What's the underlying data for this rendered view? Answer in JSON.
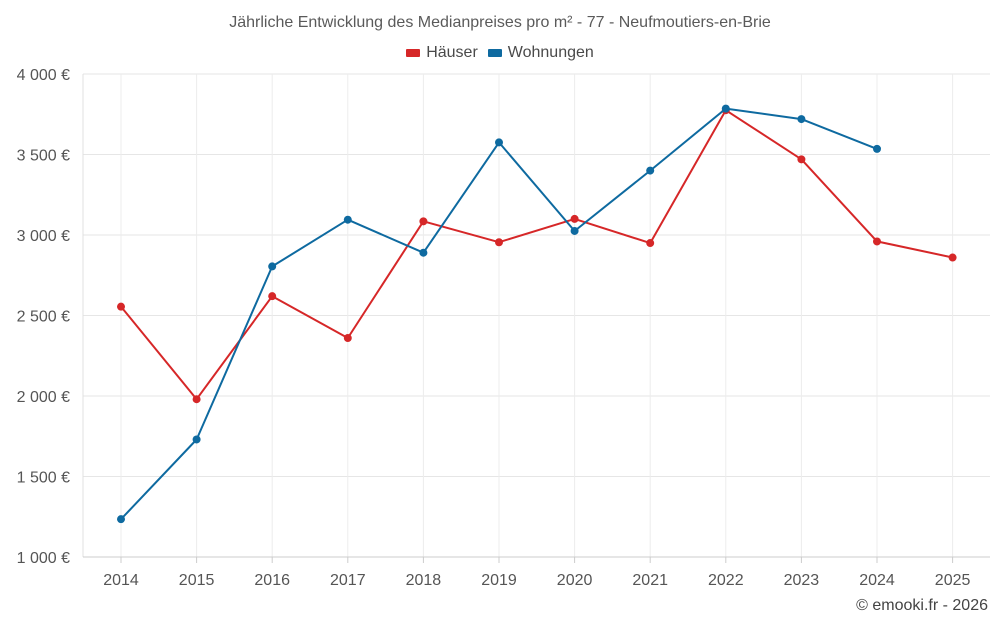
{
  "chart_data": {
    "type": "line",
    "title": "Jährliche Entwicklung des Medianpreises pro m² - 77 - Neufmoutiers-en-Brie",
    "xlabel": "",
    "ylabel": "",
    "categories": [
      "2014",
      "2015",
      "2016",
      "2017",
      "2018",
      "2019",
      "2020",
      "2021",
      "2022",
      "2023",
      "2024",
      "2025"
    ],
    "ylim": [
      1000,
      4000
    ],
    "yticks": [
      1000,
      1500,
      2000,
      2500,
      3000,
      3500,
      4000
    ],
    "ytick_labels": [
      "1 000 €",
      "1 500 €",
      "2 000 €",
      "2 500 €",
      "3 000 €",
      "3 500 €",
      "4 000 €"
    ],
    "grid": true,
    "legend_position": "top-center",
    "series": [
      {
        "name": "Häuser",
        "color": "#d62728",
        "values": [
          2555,
          1980,
          2620,
          2360,
          3085,
          2955,
          3100,
          2950,
          3775,
          3470,
          2960,
          2860
        ]
      },
      {
        "name": "Wohnungen",
        "color": "#0e6aa0",
        "values": [
          1235,
          1730,
          2805,
          3095,
          2890,
          3575,
          3025,
          3400,
          3785,
          3720,
          3535,
          null
        ]
      }
    ]
  },
  "footer": "© emooki.fr - 2026"
}
